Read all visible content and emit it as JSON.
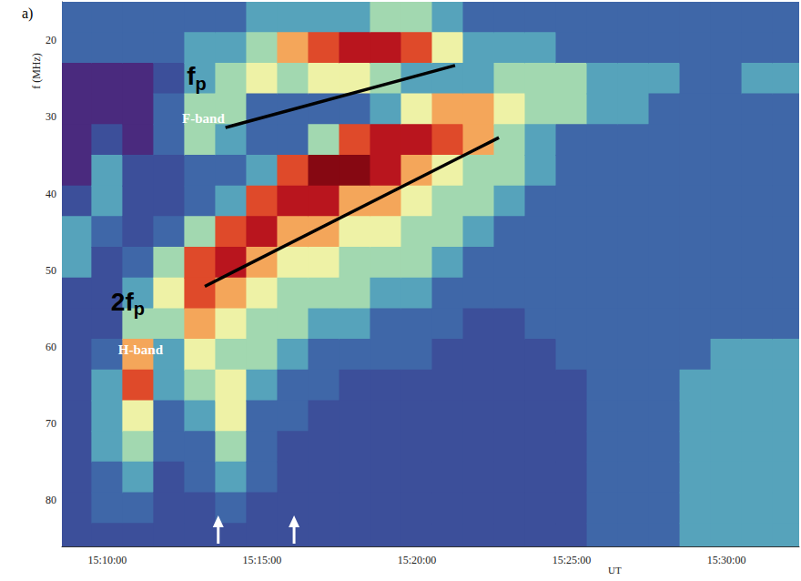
{
  "chart_data": {
    "type": "heatmap",
    "title": "a)",
    "x_label": "UT",
    "y_label": "f (MHz)",
    "x": [
      54540,
      54600,
      54660,
      54720,
      54780,
      54840,
      54900,
      54960,
      55020,
      55080,
      55140,
      55200,
      55260,
      55320,
      55380,
      55440,
      55500,
      55560,
      55620,
      55680,
      55740,
      55800,
      55860,
      55920
    ],
    "y": [
      17,
      21,
      25,
      29,
      33,
      37,
      41,
      45,
      49,
      53,
      57,
      61,
      65,
      69,
      73,
      77,
      81,
      85
    ],
    "z": [
      [
        3,
        3,
        1,
        1,
        1,
        1,
        2,
        4,
        4,
        2,
        2,
        2,
        2,
        2,
        2,
        2,
        2,
        2
      ],
      [
        3,
        3,
        1,
        1,
        2,
        4,
        4,
        3,
        2,
        2,
        2,
        3,
        4,
        4,
        4,
        3,
        3,
        2
      ],
      [
        3,
        3,
        1,
        1,
        1,
        2,
        2,
        2,
        3,
        4,
        5,
        7,
        8,
        6,
        5,
        4,
        3,
        2
      ],
      [
        3,
        3,
        2,
        3,
        3,
        2,
        2,
        3,
        5,
        6,
        5,
        4,
        4,
        3,
        3,
        2,
        2,
        2
      ],
      [
        3,
        4,
        4,
        5,
        5,
        3,
        3,
        5,
        8,
        8,
        7,
        6,
        5,
        4,
        3,
        3,
        2,
        2
      ],
      [
        3,
        4,
        5,
        5,
        4,
        3,
        4,
        8,
        9,
        7,
        6,
        5,
        6,
        6,
        5,
        4,
        3,
        2
      ],
      [
        4,
        5,
        6,
        3,
        3,
        4,
        8,
        9,
        7,
        6,
        5,
        5,
        4,
        3,
        3,
        3,
        2,
        2
      ],
      [
        4,
        7,
        5,
        3,
        3,
        8,
        9,
        7,
        6,
        5,
        5,
        4,
        3,
        3,
        2,
        2,
        2,
        2
      ],
      [
        4,
        8,
        6,
        3,
        5,
        10,
        9,
        7,
        6,
        5,
        4,
        3,
        3,
        2,
        2,
        2,
        2,
        2
      ],
      [
        4,
        9,
        6,
        3,
        8,
        10,
        7,
        6,
        5,
        5,
        4,
        3,
        2,
        2,
        2,
        2,
        2,
        2
      ],
      [
        5,
        9,
        5,
        4,
        9,
        9,
        7,
        6,
        5,
        4,
        3,
        3,
        2,
        2,
        2,
        2,
        2,
        2
      ],
      [
        5,
        8,
        4,
        6,
        9,
        7,
        6,
        5,
        5,
        4,
        3,
        3,
        2,
        2,
        2,
        2,
        2,
        2
      ],
      [
        4,
        6,
        4,
        7,
        8,
        6,
        5,
        5,
        4,
        3,
        3,
        2,
        2,
        2,
        2,
        2,
        2,
        2
      ],
      [
        3,
        4,
        4,
        7,
        7,
        5,
        5,
        4,
        3,
        3,
        2,
        2,
        2,
        2,
        2,
        2,
        2,
        2
      ],
      [
        3,
        4,
        5,
        6,
        5,
        5,
        4,
        3,
        3,
        3,
        2,
        2,
        2,
        2,
        2,
        2,
        2,
        2
      ],
      [
        3,
        4,
        5,
        5,
        4,
        4,
        3,
        3,
        3,
        3,
        3,
        2,
        2,
        2,
        2,
        2,
        2,
        2
      ],
      [
        3,
        3,
        5,
        5,
        3,
        3,
        3,
        3,
        3,
        3,
        3,
        3,
        2,
        2,
        2,
        2,
        2,
        2
      ],
      [
        3,
        3,
        4,
        4,
        3,
        3,
        3,
        3,
        3,
        3,
        3,
        3,
        3,
        3,
        3,
        3,
        3,
        3
      ],
      [
        3,
        3,
        4,
        4,
        3,
        3,
        3,
        3,
        3,
        3,
        3,
        3,
        3,
        3,
        3,
        3,
        3,
        3
      ],
      [
        3,
        3,
        4,
        3,
        3,
        3,
        3,
        3,
        3,
        3,
        3,
        3,
        3,
        3,
        3,
        3,
        3,
        3
      ],
      [
        3,
        3,
        3,
        3,
        3,
        3,
        3,
        3,
        3,
        3,
        3,
        3,
        4,
        4,
        4,
        4,
        4,
        4
      ],
      [
        3,
        3,
        3,
        3,
        3,
        3,
        3,
        3,
        3,
        3,
        3,
        4,
        4,
        4,
        4,
        4,
        4,
        4
      ],
      [
        3,
        3,
        4,
        3,
        3,
        3,
        3,
        3,
        3,
        3,
        3,
        4,
        4,
        4,
        4,
        4,
        4,
        4
      ],
      [
        3,
        3,
        4,
        3,
        3,
        3,
        3,
        3,
        3,
        3,
        3,
        4,
        4,
        4,
        4,
        4,
        4,
        4
      ]
    ],
    "zlim": [
      0,
      10
    ],
    "xlim": [
      54512,
      55941
    ],
    "xticks": [
      {
        "value": 54600,
        "label": "15:10:00"
      },
      {
        "value": 54900,
        "label": "15:15:00"
      },
      {
        "value": 55200,
        "label": "15:20:00"
      },
      {
        "value": 55500,
        "label": "15:25:00"
      },
      {
        "value": 55800,
        "label": "15:30:00"
      }
    ],
    "ylim": [
      15,
      86
    ],
    "yticks": [
      20,
      30,
      40,
      50,
      60,
      70,
      80
    ],
    "y_inverted": true,
    "grid": false,
    "fit_lines": [
      {
        "x": [
          54829,
          55274
        ],
        "y": [
          31.4,
          23.3
        ],
        "color": "#000000"
      },
      {
        "x": [
          54789,
          55359
        ],
        "y": [
          52.1,
          32.7
        ],
        "color": "#000000"
      }
    ],
    "annotations": [
      {
        "text": "f",
        "subscript": "p",
        "x": 54754,
        "y": 24.7,
        "color": "#000000"
      },
      {
        "text": "F-band",
        "x": 54745,
        "y": 30.2,
        "color": "#ffffff"
      },
      {
        "text": "2f",
        "subscript": "p",
        "x": 54607,
        "y": 54.1,
        "color": "#000000"
      },
      {
        "text": "H-band",
        "x": 54621,
        "y": 60.4,
        "color": "#ffffff"
      }
    ],
    "arrows": [
      54815,
      54962
    ]
  }
}
